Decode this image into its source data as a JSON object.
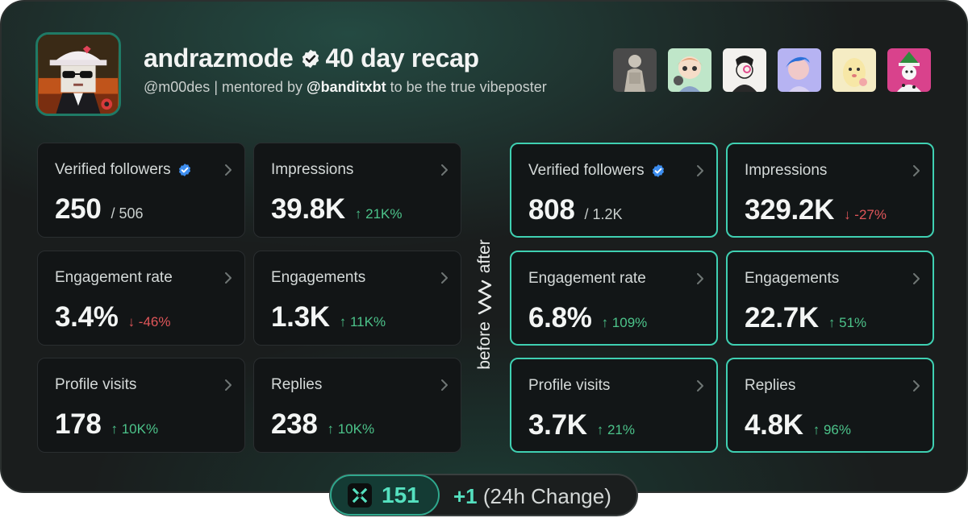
{
  "header": {
    "name": "andrazmode",
    "recap": "40 day recap",
    "handle": "@m00des",
    "sep": " | mentored by ",
    "mentor": "@banditxbt",
    "tail": " to be the true vibeposter"
  },
  "before": [
    {
      "label": "Verified followers",
      "verified": true,
      "value": "250",
      "sub": "/ 506",
      "change": "",
      "dir": ""
    },
    {
      "label": "Impressions",
      "verified": false,
      "value": "39.8K",
      "sub": "",
      "change": "↑ 21K%",
      "dir": "up"
    },
    {
      "label": "Engagement rate",
      "verified": false,
      "value": "3.4%",
      "sub": "",
      "change": "↓ -46%",
      "dir": "down"
    },
    {
      "label": "Engagements",
      "verified": false,
      "value": "1.3K",
      "sub": "",
      "change": "↑ 11K%",
      "dir": "up"
    },
    {
      "label": "Profile visits",
      "verified": false,
      "value": "178",
      "sub": "",
      "change": "↑ 10K%",
      "dir": "up"
    },
    {
      "label": "Replies",
      "verified": false,
      "value": "238",
      "sub": "",
      "change": "↑ 10K%",
      "dir": "up"
    }
  ],
  "after": [
    {
      "label": "Verified followers",
      "verified": true,
      "value": "808",
      "sub": "/ 1.2K",
      "change": "",
      "dir": ""
    },
    {
      "label": "Impressions",
      "verified": false,
      "value": "329.2K",
      "sub": "",
      "change": "↓ -27%",
      "dir": "down"
    },
    {
      "label": "Engagement rate",
      "verified": false,
      "value": "6.8%",
      "sub": "",
      "change": "↑ 109%",
      "dir": "up"
    },
    {
      "label": "Engagements",
      "verified": false,
      "value": "22.7K",
      "sub": "",
      "change": "↑ 51%",
      "dir": "up"
    },
    {
      "label": "Profile visits",
      "verified": false,
      "value": "3.7K",
      "sub": "",
      "change": "↑ 21%",
      "dir": "up"
    },
    {
      "label": "Replies",
      "verified": false,
      "value": "4.8K",
      "sub": "",
      "change": "↑ 96%",
      "dir": "up"
    }
  ],
  "divider": {
    "before": "before",
    "after": "after"
  },
  "footer": {
    "score": "151",
    "delta": "+1",
    "label": "(24h Change)"
  },
  "colors": {
    "accent": "#3fd0b2",
    "up": "#4cc38a",
    "down": "#e0565a",
    "verified": "#3d8ef0"
  }
}
